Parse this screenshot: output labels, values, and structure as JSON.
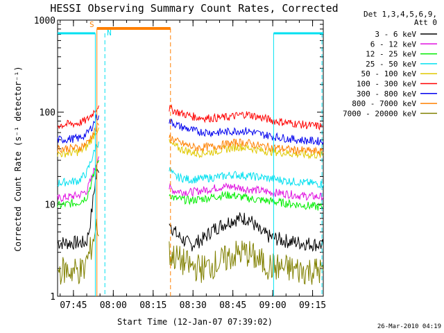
{
  "chart_data": {
    "type": "line",
    "title": "HESSI Observing Summary Count Rates, Corrected",
    "xlabel": "Start Time (12-Jan-07 07:39:02)",
    "ylabel": "Corrected Count Rate (s⁻¹ detector⁻¹)",
    "yscale": "log",
    "ylim": [
      1,
      1000
    ],
    "xlim_minutes": [
      0,
      100
    ],
    "x_ticks": [
      {
        "label": "07:45",
        "minute": 5.97
      },
      {
        "label": "08:00",
        "minute": 20.97
      },
      {
        "label": "08:15",
        "minute": 35.97
      },
      {
        "label": "08:30",
        "minute": 50.97
      },
      {
        "label": "08:45",
        "minute": 65.97
      },
      {
        "label": "09:00",
        "minute": 80.97
      },
      {
        "label": "09:15",
        "minute": 95.97
      }
    ],
    "y_ticks": [
      {
        "label": "1",
        "value": 1
      },
      {
        "label": "10",
        "value": 10
      },
      {
        "label": "100",
        "value": 100
      },
      {
        "label": "1000",
        "value": 1000
      }
    ],
    "legend_header": [
      "Det 1,3,4,5,6,9,",
      "Att 0"
    ],
    "legend_position": "right",
    "grid": false,
    "series": [
      {
        "name": "3 - 6 keV",
        "color": "#000000",
        "points": [
          [
            0,
            3.8
          ],
          [
            10,
            3.8
          ],
          [
            11,
            4
          ],
          [
            12,
            5.5
          ],
          [
            13,
            9
          ],
          [
            14,
            16
          ],
          [
            14.8,
            22
          ],
          [
            15.5,
            22
          ],
          [
            16,
            null
          ],
          [
            41,
            null
          ],
          [
            42,
            7
          ],
          [
            43,
            5.6
          ],
          [
            45,
            4.6
          ],
          [
            50,
            3.6
          ],
          [
            55,
            4.2
          ],
          [
            58,
            5.2
          ],
          [
            62,
            6
          ],
          [
            66,
            6.8
          ],
          [
            70,
            7
          ],
          [
            72,
            7
          ],
          [
            74,
            6
          ],
          [
            76,
            5
          ],
          [
            80,
            4.4
          ],
          [
            84,
            4.1
          ],
          [
            88,
            3.9
          ],
          [
            92,
            3.8
          ],
          [
            96,
            3.7
          ],
          [
            100,
            3.6
          ]
        ]
      },
      {
        "name": "6 - 12 keV",
        "color": "#e010e0",
        "points": [
          [
            0,
            11.5
          ],
          [
            8,
            12.5
          ],
          [
            11,
            14
          ],
          [
            13,
            20
          ],
          [
            14.5,
            28
          ],
          [
            15.5,
            33
          ],
          [
            16,
            null
          ],
          [
            41,
            null
          ],
          [
            42,
            15
          ],
          [
            44,
            14
          ],
          [
            50,
            13.5
          ],
          [
            55,
            14.2
          ],
          [
            62,
            15.5
          ],
          [
            66,
            15.5
          ],
          [
            70,
            14.8
          ],
          [
            75,
            14.2
          ],
          [
            80,
            13.5
          ],
          [
            86,
            13
          ],
          [
            92,
            12.3
          ],
          [
            100,
            12
          ]
        ]
      },
      {
        "name": "12 - 25 keV",
        "color": "#00ee00",
        "points": [
          [
            0,
            9.6
          ],
          [
            8,
            10.5
          ],
          [
            11,
            12
          ],
          [
            13,
            18
          ],
          [
            14.5,
            25
          ],
          [
            15.5,
            30
          ],
          [
            16,
            null
          ],
          [
            41,
            null
          ],
          [
            42,
            13
          ],
          [
            44,
            11.5
          ],
          [
            50,
            11
          ],
          [
            55,
            11.5
          ],
          [
            62,
            12.5
          ],
          [
            66,
            12.5
          ],
          [
            70,
            11.8
          ],
          [
            75,
            11.2
          ],
          [
            80,
            10.8
          ],
          [
            86,
            10.2
          ],
          [
            92,
            9.8
          ],
          [
            100,
            9.2
          ]
        ]
      },
      {
        "name": "25 - 50 keV",
        "color": "#00e0f0",
        "points": [
          [
            0,
            17
          ],
          [
            8,
            18
          ],
          [
            11,
            22
          ],
          [
            13,
            32
          ],
          [
            14.5,
            42
          ],
          [
            15.5,
            48
          ],
          [
            16,
            null
          ],
          [
            41,
            null
          ],
          [
            42,
            24
          ],
          [
            44,
            20
          ],
          [
            50,
            18.5
          ],
          [
            55,
            19
          ],
          [
            62,
            20
          ],
          [
            66,
            21
          ],
          [
            70,
            20.5
          ],
          [
            75,
            19.8
          ],
          [
            80,
            19
          ],
          [
            86,
            18
          ],
          [
            92,
            17.2
          ],
          [
            100,
            16.5
          ]
        ]
      },
      {
        "name": "50 - 100 keV",
        "color": "#e0c800",
        "points": [
          [
            0,
            35
          ],
          [
            8,
            37
          ],
          [
            11,
            42
          ],
          [
            13,
            52
          ],
          [
            14.5,
            62
          ],
          [
            15.5,
            68
          ],
          [
            16,
            null
          ],
          [
            41,
            null
          ],
          [
            42,
            46
          ],
          [
            46,
            40
          ],
          [
            52,
            35.5
          ],
          [
            58,
            37
          ],
          [
            64,
            40
          ],
          [
            68,
            42
          ],
          [
            72,
            41
          ],
          [
            76,
            38.5
          ],
          [
            82,
            37
          ],
          [
            88,
            35.5
          ],
          [
            94,
            34.5
          ],
          [
            100,
            34
          ]
        ]
      },
      {
        "name": "100 - 300 keV",
        "color": "#ff0000",
        "points": [
          [
            0,
            72
          ],
          [
            8,
            76
          ],
          [
            11,
            82
          ],
          [
            13,
            95
          ],
          [
            14.5,
            110
          ],
          [
            15.5,
            118
          ],
          [
            16,
            null
          ],
          [
            41,
            null
          ],
          [
            42,
            110
          ],
          [
            46,
            98
          ],
          [
            52,
            88
          ],
          [
            58,
            86
          ],
          [
            64,
            88
          ],
          [
            68,
            92
          ],
          [
            70,
            95
          ],
          [
            72,
            94
          ],
          [
            76,
            88
          ],
          [
            82,
            80
          ],
          [
            88,
            76
          ],
          [
            94,
            72
          ],
          [
            100,
            70
          ]
        ]
      },
      {
        "name": "300 - 800 keV",
        "color": "#0000ee",
        "points": [
          [
            0,
            50
          ],
          [
            8,
            52
          ],
          [
            11,
            58
          ],
          [
            13,
            70
          ],
          [
            14.5,
            86
          ],
          [
            15.5,
            92
          ],
          [
            16,
            null
          ],
          [
            41,
            null
          ],
          [
            42,
            80
          ],
          [
            46,
            70
          ],
          [
            52,
            62
          ],
          [
            58,
            60
          ],
          [
            64,
            61
          ],
          [
            68,
            63
          ],
          [
            72,
            62
          ],
          [
            76,
            58
          ],
          [
            82,
            54
          ],
          [
            88,
            51
          ],
          [
            94,
            49
          ],
          [
            100,
            48
          ]
        ]
      },
      {
        "name": "800 - 7000 keV",
        "color": "#ff8000",
        "points": [
          [
            0,
            40
          ],
          [
            8,
            41
          ],
          [
            11,
            46
          ],
          [
            13,
            56
          ],
          [
            14.5,
            66
          ],
          [
            15.5,
            72
          ],
          [
            16,
            null
          ],
          [
            41,
            null
          ],
          [
            42,
            54
          ],
          [
            46,
            46
          ],
          [
            52,
            41
          ],
          [
            58,
            42
          ],
          [
            64,
            45
          ],
          [
            68,
            47
          ],
          [
            72,
            46
          ],
          [
            76,
            43
          ],
          [
            82,
            41
          ],
          [
            88,
            39
          ],
          [
            94,
            38
          ],
          [
            100,
            37
          ]
        ]
      },
      {
        "name": "7000 - 20000 keV",
        "color": "#808000",
        "points": [
          [
            0,
            1.9
          ],
          [
            10,
            1.9
          ],
          [
            11,
            2.5
          ],
          [
            12,
            2.8
          ],
          [
            13,
            3.8
          ],
          [
            14,
            5
          ],
          [
            15,
            6
          ],
          [
            15.5,
            4.5
          ],
          [
            16,
            null
          ],
          [
            41,
            null
          ],
          [
            42,
            2.9
          ],
          [
            50,
            2.1
          ],
          [
            55,
            2
          ],
          [
            62,
            2.4
          ],
          [
            66,
            2.8
          ],
          [
            70,
            3
          ],
          [
            72,
            2.9
          ],
          [
            76,
            2.4
          ],
          [
            80,
            2.1
          ],
          [
            86,
            2
          ],
          [
            92,
            1.9
          ],
          [
            100,
            1.9
          ]
        ]
      }
    ],
    "annotations": [
      {
        "label": "S",
        "color": "#ff8000"
      },
      {
        "label": "N",
        "color": "#00e0f0"
      }
    ],
    "footer_date": "26-Mar-2010 04:19"
  }
}
